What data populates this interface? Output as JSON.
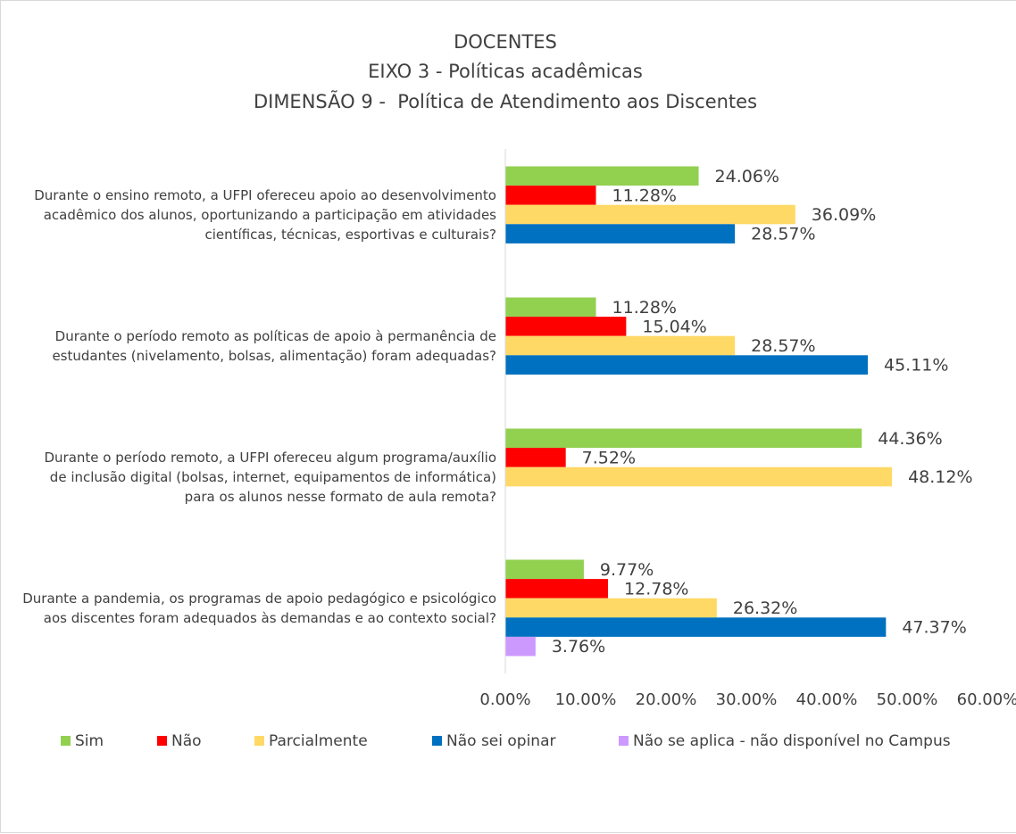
{
  "chart_data": {
    "type": "hbar",
    "title": "DOCENTES",
    "subtitle": [
      "EIXO 3 - Políticas acadêmicas",
      "DIMENSÃO 9 -  Política de Atendimento aos Discentes"
    ],
    "categories": [
      "Durante o ensino remoto, a UFPI ofereceu apoio ao desenvolvimento\nacadêmico dos alunos, oportunizando a participação em atividades\ncientíficas, técnicas, esportivas e culturais?",
      "Durante o período remoto as políticas de apoio à permanência de\nestudantes (nivelamento, bolsas, alimentação) foram adequadas?",
      "Durante o período remoto, a UFPI ofereceu algum programa/auxílio\nde inclusão digital (bolsas, internet, equipamentos de informática)\npara os alunos nesse formato de aula remota?",
      "Durante a pandemia, os programas de apoio pedagógico e psicológico\naos discentes foram adequados às demandas e ao contexto social?"
    ],
    "series": [
      {
        "name": "Sim",
        "color": "#92d050",
        "values": [
          24.06,
          11.28,
          44.36,
          9.77
        ],
        "value_labels": [
          "24.06%",
          "11.28%",
          "44.36%",
          "9.77%"
        ]
      },
      {
        "name": "Não",
        "color": "#ff0000",
        "values": [
          11.28,
          15.04,
          7.52,
          12.78
        ],
        "value_labels": [
          "11.28%",
          "15.04%",
          "7.52%",
          "12.78%"
        ]
      },
      {
        "name": "Parcialmente",
        "color": "#ffd966",
        "values": [
          36.09,
          28.57,
          48.12,
          26.32
        ],
        "value_labels": [
          "36.09%",
          "28.57%",
          "48.12%",
          "26.32%"
        ]
      },
      {
        "name": "Não sei opinar",
        "color": "#0070c0",
        "values": [
          28.57,
          45.11,
          null,
          47.37
        ],
        "value_labels": [
          "28.57%",
          "45.11%",
          null,
          "47.37%"
        ]
      },
      {
        "name": "Não se aplica - não disponível no Campus",
        "color": "#cc99ff",
        "values": [
          null,
          null,
          null,
          3.76
        ],
        "value_labels": [
          null,
          null,
          null,
          "3.76%"
        ]
      }
    ],
    "xlim": [
      0,
      60
    ],
    "xticks": [
      {
        "value": 0,
        "label": "0.00%"
      },
      {
        "value": 10,
        "label": "10.00%"
      },
      {
        "value": 20,
        "label": "20.00%"
      },
      {
        "value": 30,
        "label": "30.00%"
      },
      {
        "value": 40,
        "label": "40.00%"
      },
      {
        "value": 50,
        "label": "50.00%"
      },
      {
        "value": 60,
        "label": "60.00%"
      }
    ],
    "legend": "bottom"
  }
}
